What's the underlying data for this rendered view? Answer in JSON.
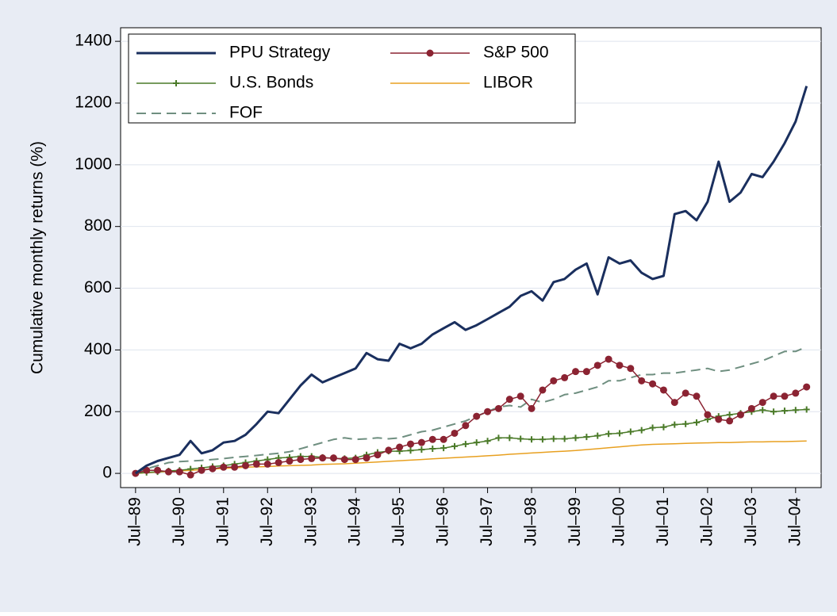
{
  "chart_data": {
    "type": "line",
    "y_label": "Cumulative monthly returns (%)",
    "x": [
      1989.5,
      1989.75,
      1990,
      1990.25,
      1990.5,
      1990.75,
      1991,
      1991.25,
      1991.5,
      1991.75,
      1992,
      1992.25,
      1992.5,
      1992.75,
      1993,
      1993.25,
      1993.5,
      1993.75,
      1994,
      1994.25,
      1994.5,
      1994.75,
      1995,
      1995.25,
      1995.5,
      1995.75,
      1996,
      1996.25,
      1996.5,
      1996.75,
      1997,
      1997.25,
      1997.5,
      1997.75,
      1998,
      1998.25,
      1998.5,
      1998.75,
      1999,
      1999.25,
      1999.5,
      1999.75,
      2000,
      2000.25,
      2000.5,
      2000.75,
      2001,
      2001.25,
      2001.5,
      2001.75,
      2002,
      2002.25,
      2002.5,
      2002.75,
      2003,
      2003.25,
      2003.5,
      2003.75,
      2004,
      2004.25,
      2004.5,
      2004.75
    ],
    "series": [
      {
        "name": "PPU Strategy",
        "color": "#1a2f5e",
        "width": 3,
        "values": [
          0,
          25,
          40,
          50,
          60,
          105,
          65,
          75,
          100,
          105,
          125,
          160,
          200,
          195,
          240,
          285,
          320,
          295,
          310,
          325,
          340,
          390,
          370,
          365,
          420,
          405,
          420,
          450,
          470,
          490,
          465,
          480,
          500,
          520,
          540,
          575,
          590,
          560,
          620,
          630,
          660,
          680,
          580,
          700,
          680,
          690,
          650,
          630,
          640,
          840,
          850,
          820,
          880,
          1010,
          880,
          910,
          970,
          960,
          1010,
          1070,
          1140,
          1255
        ]
      },
      {
        "name": "S&P 500",
        "color": "#8b2332",
        "width": 1.5,
        "marker": "circle",
        "values": [
          0,
          10,
          10,
          5,
          5,
          -5,
          10,
          15,
          20,
          20,
          25,
          30,
          30,
          35,
          40,
          45,
          48,
          50,
          50,
          45,
          45,
          50,
          60,
          75,
          85,
          95,
          100,
          110,
          110,
          130,
          155,
          185,
          200,
          210,
          240,
          250,
          210,
          270,
          300,
          310,
          330,
          330,
          350,
          370,
          350,
          340,
          300,
          290,
          270,
          230,
          260,
          250,
          190,
          175,
          170,
          190,
          210,
          230,
          250,
          250,
          260,
          280
        ]
      },
      {
        "name": "U.S. Bonds",
        "color": "#4a7a28",
        "width": 1.5,
        "marker": "plus",
        "values": [
          0,
          3,
          5,
          8,
          10,
          14,
          18,
          22,
          25,
          30,
          35,
          40,
          45,
          50,
          52,
          55,
          55,
          52,
          48,
          48,
          50,
          60,
          68,
          72,
          72,
          74,
          77,
          80,
          82,
          88,
          95,
          100,
          105,
          115,
          115,
          112,
          110,
          110,
          112,
          112,
          115,
          118,
          122,
          128,
          130,
          135,
          140,
          148,
          150,
          158,
          160,
          165,
          175,
          185,
          190,
          195,
          200,
          205,
          200,
          203,
          205,
          207
        ]
      },
      {
        "name": "LIBOR",
        "color": "#e8a020",
        "width": 1.5,
        "values": [
          0,
          2,
          4,
          6,
          8,
          10,
          12,
          14,
          16,
          18,
          20,
          21,
          22,
          24,
          25,
          26,
          27,
          29,
          30,
          31,
          33,
          35,
          37,
          39,
          41,
          43,
          45,
          47,
          49,
          51,
          53,
          55,
          57,
          59,
          62,
          64,
          66,
          68,
          70,
          72,
          74,
          77,
          80,
          83,
          86,
          89,
          92,
          94,
          95,
          96,
          97,
          98,
          99,
          100,
          100,
          101,
          102,
          102,
          103,
          103,
          104,
          105
        ]
      },
      {
        "name": "FOF",
        "color": "#6f8f80",
        "width": 2,
        "dash": true,
        "values": [
          0,
          15,
          25,
          35,
          38,
          40,
          42,
          45,
          48,
          52,
          55,
          58,
          62,
          65,
          70,
          80,
          90,
          100,
          110,
          115,
          110,
          112,
          115,
          112,
          115,
          125,
          135,
          140,
          150,
          160,
          170,
          185,
          200,
          215,
          220,
          215,
          240,
          230,
          240,
          255,
          260,
          270,
          280,
          300,
          300,
          310,
          320,
          320,
          325,
          325,
          330,
          335,
          340,
          330,
          335,
          345,
          355,
          365,
          380,
          395,
          395,
          410
        ]
      }
    ],
    "xlim": [
      1989.16,
      2005.08
    ],
    "xticks": [
      {
        "value": 1989.5,
        "label": "Jul–89"
      },
      {
        "value": 1990.5,
        "label": "Jul–90"
      },
      {
        "value": 1991.5,
        "label": "Jul–91"
      },
      {
        "value": 1992.5,
        "label": "Jul–92"
      },
      {
        "value": 1993.5,
        "label": "Jul–93"
      },
      {
        "value": 1994.5,
        "label": "Jul–94"
      },
      {
        "value": 1995.5,
        "label": "Jul–95"
      },
      {
        "value": 1996.5,
        "label": "Jul–96"
      },
      {
        "value": 1997.5,
        "label": "Jul–97"
      },
      {
        "value": 1998.5,
        "label": "Jul–98"
      },
      {
        "value": 1999.5,
        "label": "Jul–99"
      },
      {
        "value": 2000.5,
        "label": "Jul–00"
      },
      {
        "value": 2001.5,
        "label": "Jul–01"
      },
      {
        "value": 2002.5,
        "label": "Jul–02"
      },
      {
        "value": 2003.5,
        "label": "Jul–03"
      },
      {
        "value": 2004.5,
        "label": "Jul–04"
      }
    ],
    "ylim": [
      -46,
      1444
    ],
    "yticks": [
      0,
      200,
      400,
      600,
      800,
      1000,
      1200,
      1400
    ],
    "grid": true,
    "legend": "top-left"
  }
}
